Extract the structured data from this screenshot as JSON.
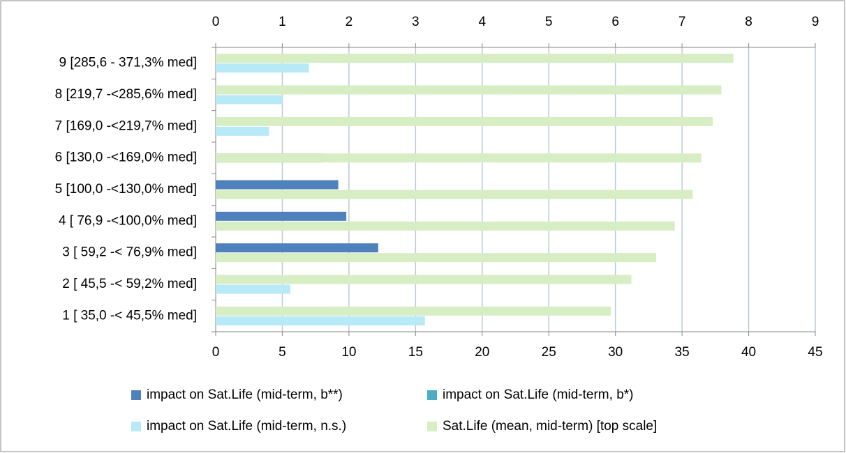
{
  "chart_data": {
    "type": "bar",
    "orientation": "horizontal",
    "categories": [
      "9  [285,6 - 371,3% med]",
      "8 [219,7 -<285,6% med]",
      "7 [169,0 -<219,7% med]",
      "6 [130,0 -<169,0% med]",
      "5 [100,0 -<130,0% med]",
      "4 [ 76,9 -<100,0% med]",
      "3  [ 59,2 -< 76,9% med]",
      "2  [ 45,5 -< 59,2% med]",
      "1  [ 35,0 -< 45,5% med]"
    ],
    "series": [
      {
        "name": "impact on Sat.Life (mid-term, b**)",
        "color": "#4f81bd",
        "values": [
          null,
          null,
          null,
          null,
          9.2,
          9.8,
          12.2,
          null,
          null
        ]
      },
      {
        "name": "impact on Sat.Life (mid-term, b*)",
        "color": "#4bacc6",
        "values": [
          null,
          null,
          null,
          8.0,
          null,
          null,
          null,
          null,
          null
        ]
      },
      {
        "name": "impact on Sat.Life (mid-term, n.s.)",
        "color": "#b7e9f7",
        "values": [
          7.0,
          5.0,
          4.0,
          null,
          null,
          null,
          null,
          5.6,
          15.7
        ]
      },
      {
        "name": "Sat.Life (mean, mid-term) [top scale]",
        "color": "#d7edc4",
        "axis": "x2",
        "values": [
          7.77,
          7.59,
          7.46,
          7.29,
          7.16,
          6.89,
          6.61,
          6.24,
          5.93
        ]
      }
    ],
    "xlim": [
      0,
      45
    ],
    "xticks": [
      0,
      5,
      10,
      15,
      20,
      25,
      30,
      35,
      40,
      45
    ],
    "x2lim": [
      0,
      9
    ],
    "x2ticks": [
      0,
      1,
      2,
      3,
      4,
      5,
      6,
      7,
      8,
      9
    ],
    "grid": true
  }
}
